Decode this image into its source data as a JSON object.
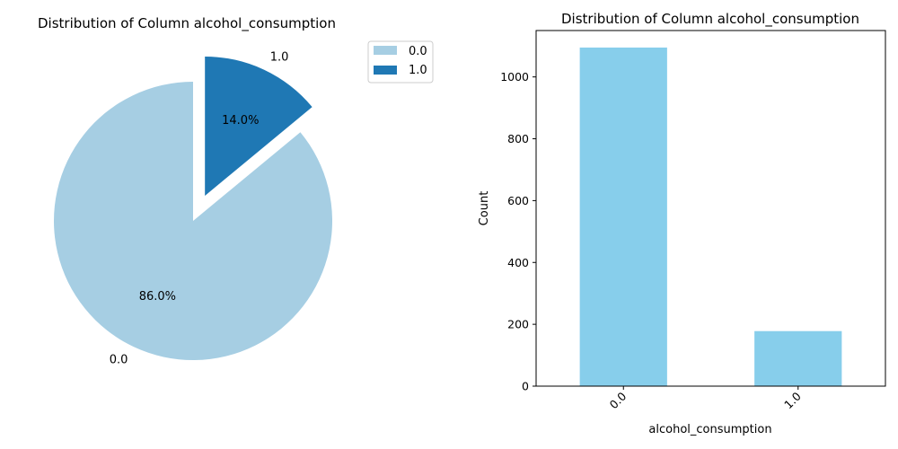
{
  "chart_data": [
    {
      "type": "pie",
      "title": "Distribution of Column alcohol_consumption",
      "categories": [
        "0.0",
        "1.0"
      ],
      "values": [
        86.0,
        14.0
      ],
      "percent_labels": [
        "86.0%",
        "14.0%"
      ],
      "colors": [
        "#a6cee3",
        "#1f78b4"
      ],
      "exploded": [
        "1.0"
      ],
      "start_angle_deg": 90,
      "legend": {
        "placement": "upper-right-outside",
        "entries": [
          "0.0",
          "1.0"
        ]
      }
    },
    {
      "type": "bar",
      "title": "Distribution of Column alcohol_consumption",
      "categories": [
        "0.0",
        "1.0"
      ],
      "values": [
        1095,
        178
      ],
      "xlabel": "alcohol_consumption",
      "ylabel": "Count",
      "ylim": [
        0,
        1150
      ],
      "yticks": [
        0,
        200,
        400,
        600,
        800,
        1000
      ],
      "bar_color": "#87ceeb",
      "grid": false
    }
  ]
}
